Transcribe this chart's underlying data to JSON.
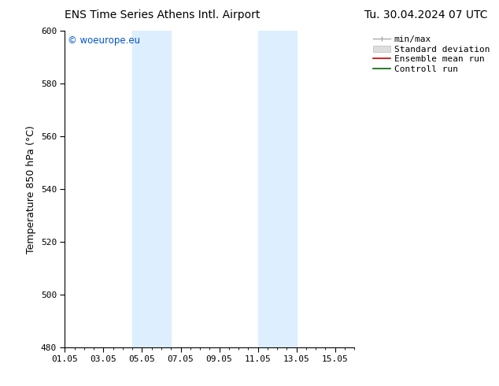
{
  "title_left": "ENS Time Series Athens Intl. Airport",
  "title_right": "Tu. 30.04.2024 07 UTC",
  "ylabel": "Temperature 850 hPa (°C)",
  "watermark": "© woeurope.eu",
  "watermark_color": "#0055cc",
  "ylim": [
    480,
    600
  ],
  "yticks": [
    480,
    500,
    520,
    540,
    560,
    580,
    600
  ],
  "xlim": [
    0,
    15
  ],
  "xtick_labels": [
    "01.05",
    "03.05",
    "05.05",
    "07.05",
    "09.05",
    "11.05",
    "13.05",
    "15.05"
  ],
  "xtick_positions": [
    0,
    2,
    4,
    6,
    8,
    10,
    12,
    14
  ],
  "shading_bands": [
    {
      "xstart": 3.5,
      "xend": 5.5,
      "color": "#ddeeff"
    },
    {
      "xstart": 10.0,
      "xend": 12.0,
      "color": "#ddeeff"
    }
  ],
  "legend_items": [
    {
      "label": "min/max",
      "color": "#aaaaaa",
      "style": "line_with_caps"
    },
    {
      "label": "Standard deviation",
      "color": "#cccccc",
      "style": "bar"
    },
    {
      "label": "Ensemble mean run",
      "color": "#cc0000",
      "style": "line"
    },
    {
      "label": "Controll run",
      "color": "#006600",
      "style": "line"
    }
  ],
  "background_color": "#ffffff",
  "plot_bg_color": "#ffffff",
  "tick_font_size": 8,
  "label_font_size": 9,
  "title_font_size": 10,
  "legend_font_size": 8
}
